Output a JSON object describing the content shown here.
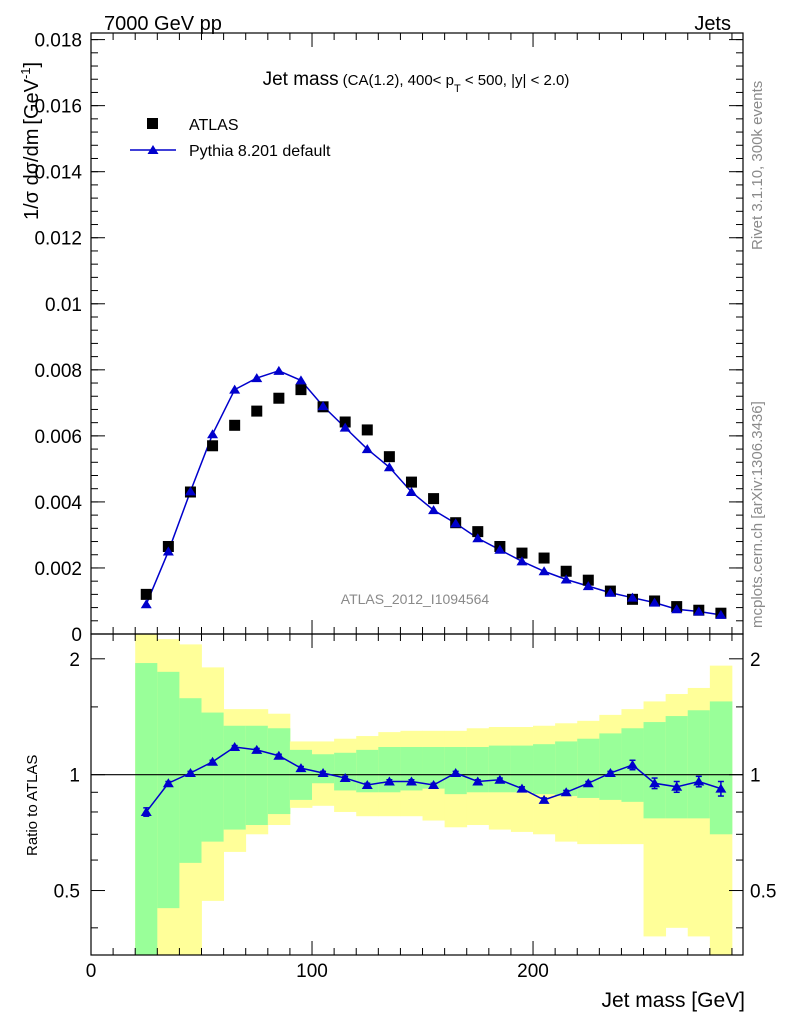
{
  "header": {
    "left": "7000 GeV pp",
    "right": "Jets"
  },
  "side_labels": {
    "rivet": "Rivet 3.1.10,  300k events",
    "mcplots": "mcplots.cern.ch [arXiv:1306.3436]"
  },
  "watermark": "ATLAS_2012_I1094564",
  "title": {
    "main": "Jet mass",
    "cuts_prefix": "(CA(1.2), 400< p",
    "cuts_sub": "T",
    "cuts_suffix": " < 500, |y| < 2.0)"
  },
  "axes": {
    "y_main_label": "1/σ dσ/dm",
    "y_main_unit": "[GeV",
    "y_main_unit_sup": "-1",
    "y_main_unit_close": "]",
    "y_ratio_label": "Ratio to ATLAS",
    "x_label": "Jet mass [GeV]"
  },
  "chart_data": {
    "type": "scatter",
    "x_range": [
      0,
      295
    ],
    "main_ylim": [
      0,
      0.0182
    ],
    "ratio_ylim": [
      0.34,
      2.32
    ],
    "y_ticks": [
      {
        "v": 0,
        "label": "0"
      },
      {
        "v": 0.002,
        "label": "0.002"
      },
      {
        "v": 0.004,
        "label": "0.004"
      },
      {
        "v": 0.006,
        "label": "0.006"
      },
      {
        "v": 0.008,
        "label": "0.008"
      },
      {
        "v": 0.01,
        "label": "0.01"
      },
      {
        "v": 0.012,
        "label": "0.012"
      },
      {
        "v": 0.014,
        "label": "0.014"
      },
      {
        "v": 0.016,
        "label": "0.016"
      },
      {
        "v": 0.018,
        "label": "0.018"
      }
    ],
    "ratio_ticks": [
      {
        "v": 0.5,
        "label": "0.5"
      },
      {
        "v": 1,
        "label": "1"
      },
      {
        "v": 2,
        "label": "2"
      }
    ],
    "x_ticks": [
      {
        "v": 0,
        "label": "0"
      },
      {
        "v": 100,
        "label": "100"
      },
      {
        "v": 200,
        "label": "200"
      }
    ],
    "x": [
      25,
      35,
      45,
      55,
      65,
      75,
      85,
      95,
      105,
      115,
      125,
      135,
      145,
      155,
      165,
      175,
      185,
      195,
      205,
      215,
      225,
      235,
      245,
      255,
      265,
      275,
      285
    ],
    "bin_edges": [
      20,
      30,
      40,
      50,
      60,
      70,
      80,
      90,
      100,
      110,
      120,
      130,
      140,
      150,
      160,
      170,
      180,
      190,
      200,
      210,
      220,
      230,
      240,
      250,
      260,
      270,
      280,
      290
    ],
    "series": [
      {
        "name": "ATLAS",
        "marker": "square",
        "color": "#000000",
        "values": [
          0.0012,
          0.00265,
          0.0043,
          0.0057,
          0.00632,
          0.00675,
          0.00714,
          0.0074,
          0.00688,
          0.00642,
          0.00618,
          0.00537,
          0.0046,
          0.0041,
          0.00337,
          0.0031,
          0.00265,
          0.00245,
          0.0023,
          0.0019,
          0.00163,
          0.0013,
          0.00105,
          0.001,
          0.00083,
          0.00072,
          0.00063
        ]
      },
      {
        "name": "Pythia 8.201 default",
        "marker": "triangle",
        "color": "#0000cc",
        "values": [
          0.0009,
          0.0025,
          0.00432,
          0.00605,
          0.0074,
          0.00775,
          0.00797,
          0.00768,
          0.0069,
          0.00625,
          0.0056,
          0.00505,
          0.0043,
          0.00375,
          0.00335,
          0.0029,
          0.00255,
          0.0022,
          0.0019,
          0.00165,
          0.00145,
          0.00125,
          0.0011,
          0.00095,
          0.00075,
          0.00068,
          0.00058
        ],
        "ratio": [
          0.8,
          0.95,
          1.01,
          1.08,
          1.18,
          1.16,
          1.12,
          1.04,
          1.01,
          0.98,
          0.94,
          0.96,
          0.96,
          0.94,
          1.01,
          0.96,
          0.97,
          0.92,
          0.86,
          0.9,
          0.95,
          1.01,
          1.06,
          0.95,
          0.93,
          0.96,
          0.92
        ],
        "ratio_err": [
          0.02,
          0.01,
          0.01,
          0.01,
          0.01,
          0.01,
          0.01,
          0.01,
          0.01,
          0.01,
          0.01,
          0.01,
          0.01,
          0.01,
          0.01,
          0.01,
          0.01,
          0.01,
          0.01,
          0.01,
          0.01,
          0.01,
          0.03,
          0.03,
          0.03,
          0.03,
          0.04
        ]
      }
    ],
    "uncertainty_bands": {
      "inner_color": "#99ff99",
      "outer_color": "#ffff99",
      "inner_low": [
        0.34,
        0.45,
        0.59,
        0.67,
        0.72,
        0.74,
        0.79,
        0.86,
        0.95,
        0.91,
        0.9,
        0.9,
        0.91,
        0.92,
        0.89,
        0.9,
        0.9,
        0.9,
        0.89,
        0.88,
        0.87,
        0.86,
        0.85,
        0.77,
        0.77,
        0.77,
        0.7
      ],
      "inner_high": [
        1.95,
        1.85,
        1.58,
        1.45,
        1.34,
        1.34,
        1.32,
        1.16,
        1.13,
        1.14,
        1.16,
        1.18,
        1.18,
        1.18,
        1.18,
        1.18,
        1.19,
        1.19,
        1.2,
        1.22,
        1.24,
        1.28,
        1.32,
        1.37,
        1.42,
        1.47,
        1.55
      ],
      "outer_low": [
        0.34,
        0.34,
        0.34,
        0.47,
        0.63,
        0.7,
        0.74,
        0.82,
        0.83,
        0.8,
        0.78,
        0.78,
        0.78,
        0.76,
        0.73,
        0.74,
        0.72,
        0.71,
        0.7,
        0.67,
        0.66,
        0.66,
        0.66,
        0.38,
        0.4,
        0.38,
        0.34
      ],
      "outer_high": [
        2.32,
        2.25,
        2.18,
        1.9,
        1.48,
        1.48,
        1.44,
        1.22,
        1.22,
        1.24,
        1.26,
        1.29,
        1.3,
        1.3,
        1.3,
        1.32,
        1.33,
        1.33,
        1.34,
        1.36,
        1.38,
        1.43,
        1.48,
        1.55,
        1.62,
        1.68,
        1.92
      ]
    },
    "reference_line": 1,
    "legend_position": "top-left",
    "grid": false
  }
}
